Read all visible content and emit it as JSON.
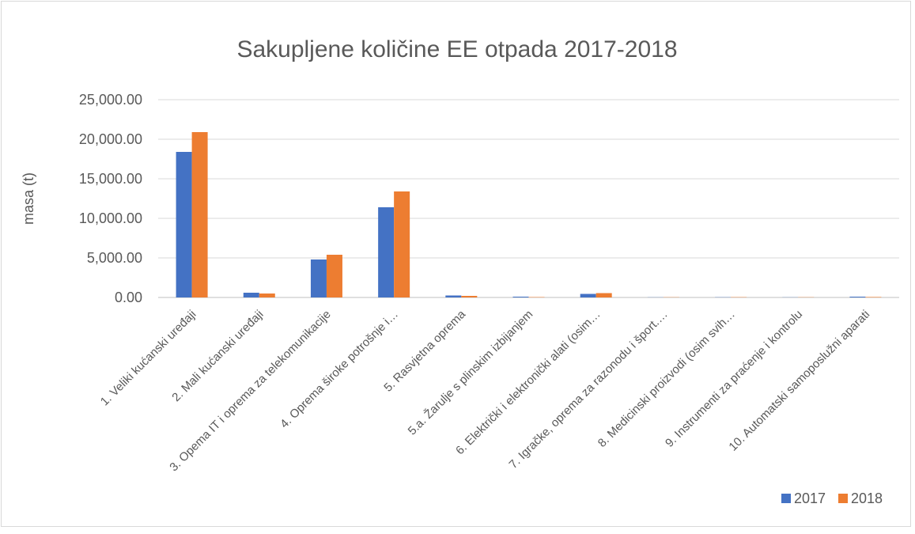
{
  "chart_data": {
    "type": "bar",
    "title": "Sakupljene količine EE otpada 2017-2018",
    "y_label": "masa (t)",
    "categories": [
      "1. Veliki kućanski uređaji",
      "2. Mali kućanski uređaji",
      "3. Opema IT i oprema za telekomunikacije",
      "4. Oprema široke potrošnje i…",
      "5. Rasvjetna oprema",
      "5.a. Žarulje s plinskim izbijanjem",
      "6. Električki i elektronički alati (osim…",
      "7. Igračke, oprema za razonodu i šport.…",
      "8. Medicinski proizvodi (osim svih…",
      "9. Instrumenti za praćenje i kontrolu",
      "10. Automatski samoposlužni aparati"
    ],
    "series": [
      {
        "name": "2017",
        "color": "#4472c4",
        "values": [
          18400,
          600,
          4800,
          11400,
          250,
          100,
          450,
          20,
          30,
          20,
          100
        ]
      },
      {
        "name": "2018",
        "color": "#ed7d31",
        "values": [
          20900,
          500,
          5400,
          13400,
          200,
          50,
          550,
          30,
          40,
          30,
          60
        ]
      }
    ],
    "ylim": [
      0,
      25000
    ],
    "yticks": [
      {
        "value": 0,
        "label": "0.00"
      },
      {
        "value": 5000,
        "label": "5,000.00"
      },
      {
        "value": 10000,
        "label": "10,000.00"
      },
      {
        "value": 15000,
        "label": "15,000.00"
      },
      {
        "value": 20000,
        "label": "20,000.00"
      },
      {
        "value": 25000,
        "label": "25,000.00"
      }
    ],
    "grid": true,
    "legend": "bottom-right"
  }
}
